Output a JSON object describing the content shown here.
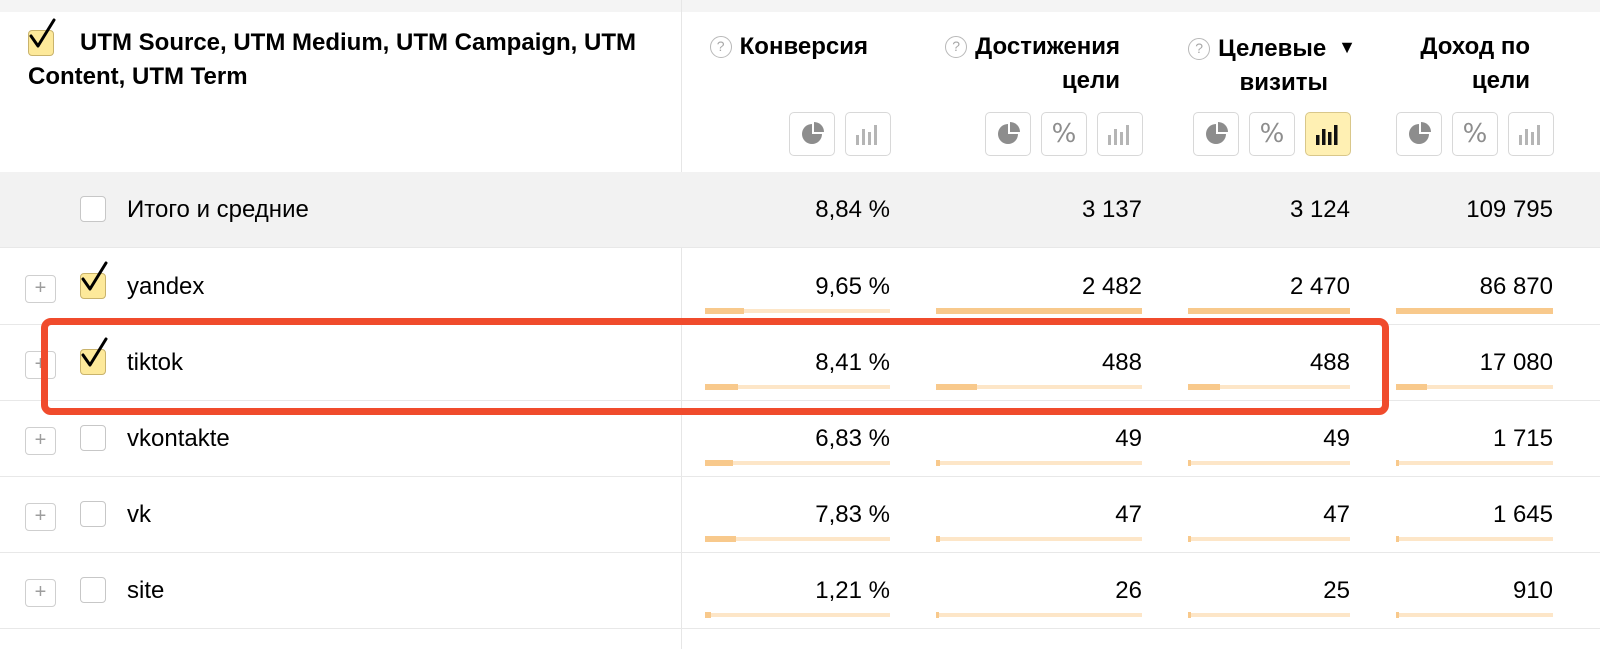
{
  "header": {
    "dimension_title": "UTM Source, UTM Medium, UTM Campaign, UTM Content, UTM Term",
    "dimension_checked": true,
    "metrics": [
      {
        "key": "conversion",
        "line1": "Конверсия",
        "line2": "",
        "sorted": false,
        "buttons": [
          "pie-chart",
          "bar-chart"
        ],
        "active_button": ""
      },
      {
        "key": "goal_reaches",
        "line1": "Достижения",
        "line2": "цели",
        "sorted": false,
        "buttons": [
          "pie-chart",
          "percent",
          "bar-chart"
        ],
        "active_button": ""
      },
      {
        "key": "target_visits",
        "line1": "Целевые",
        "line2": "визиты",
        "sorted": true,
        "sort_arrow": "▼",
        "buttons": [
          "pie-chart",
          "percent",
          "bar-chart"
        ],
        "active_button": "bar-chart"
      },
      {
        "key": "goal_revenue",
        "line1": "Доход по",
        "line2": "цели",
        "sorted": false,
        "buttons": [
          "pie-chart",
          "percent",
          "bar-chart"
        ],
        "active_button": ""
      }
    ]
  },
  "total": {
    "label": "Итого и средние",
    "checked": false,
    "conversion": "8,84 %",
    "goal_reaches": "3 137",
    "target_visits": "3 124",
    "goal_revenue": "109 795"
  },
  "rows": [
    {
      "label": "yandex",
      "checked": true,
      "conversion": "9,65 %",
      "goal_reaches": "2 482",
      "target_visits": "2 470",
      "goal_revenue": "86 870",
      "bar_fraction": {
        "conversion": 0.21,
        "goal_reaches": 1.0,
        "target_visits": 1.0,
        "goal_revenue": 1.0
      }
    },
    {
      "label": "tiktok",
      "checked": true,
      "highlighted": true,
      "conversion": "8,41 %",
      "goal_reaches": "488",
      "target_visits": "488",
      "goal_revenue": "17 080",
      "bar_fraction": {
        "conversion": 0.18,
        "goal_reaches": 0.2,
        "target_visits": 0.2,
        "goal_revenue": 0.2
      }
    },
    {
      "label": "vkontakte",
      "checked": false,
      "conversion": "6,83 %",
      "goal_reaches": "49",
      "target_visits": "49",
      "goal_revenue": "1 715",
      "bar_fraction": {
        "conversion": 0.15,
        "goal_reaches": 0.02,
        "target_visits": 0.02,
        "goal_revenue": 0.02
      }
    },
    {
      "label": "vk",
      "checked": false,
      "conversion": "7,83 %",
      "goal_reaches": "47",
      "target_visits": "47",
      "goal_revenue": "1 645",
      "bar_fraction": {
        "conversion": 0.17,
        "goal_reaches": 0.02,
        "target_visits": 0.02,
        "goal_revenue": 0.02
      }
    },
    {
      "label": "site",
      "checked": false,
      "conversion": "1,21 %",
      "goal_reaches": "26",
      "target_visits": "25",
      "goal_revenue": "910",
      "bar_fraction": {
        "conversion": 0.03,
        "goal_reaches": 0.01,
        "target_visits": 0.01,
        "goal_revenue": 0.01
      }
    }
  ],
  "colors": {
    "accent_checkbox": "#fde99a",
    "highlight_border": "#f04b2c",
    "bar_fill": "#f8c98c",
    "bar_track": "#fde6c8",
    "total_row_bg": "#f2f2f2"
  }
}
